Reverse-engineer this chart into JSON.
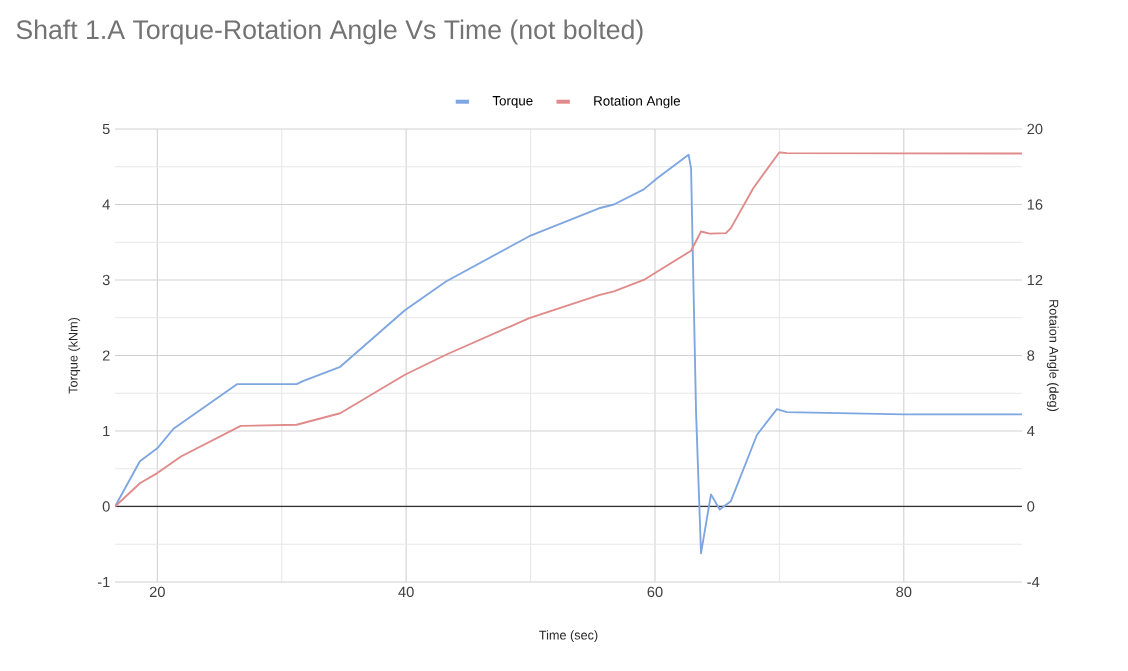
{
  "chart_data": {
    "type": "line",
    "title": "Shaft 1.A Torque-Rotation Angle Vs Time (not bolted)",
    "xlabel": "Time (sec)",
    "ylabel": "Torque (kNm)",
    "y2label": "Rotaion Angle (deg)",
    "xlim": [
      16.6,
      89.5
    ],
    "xticks": [
      20,
      40,
      60,
      80
    ],
    "ylim": [
      -1,
      5
    ],
    "yticks": [
      -1,
      0,
      1,
      2,
      3,
      4,
      5
    ],
    "y2lim": [
      -4,
      20
    ],
    "y2ticks": [
      -4,
      0,
      4,
      8,
      12,
      16,
      20
    ],
    "grid": true,
    "legend": "top",
    "marker": "none",
    "line_style": "solid",
    "ref_lines": [
      {
        "axis": "y",
        "value": 0,
        "color": "#333333"
      }
    ],
    "series": [
      {
        "name": "Torque",
        "color": "#7ea6e0",
        "x": [
          16.6,
          18.6,
          20,
          21.3,
          26.4,
          31.2,
          31.7,
          34.7,
          39.9,
          43.2,
          49.9,
          55.5,
          56.7,
          59.1,
          60.2,
          62.7,
          62.9,
          63.3,
          63.7,
          64.5,
          65.2,
          66.1,
          68.2,
          69.8,
          70.6,
          80,
          89.5
        ],
        "values": [
          0,
          0.6,
          0.77,
          1.03,
          1.62,
          1.62,
          1.66,
          1.85,
          2.6,
          2.98,
          3.58,
          3.95,
          4.0,
          4.2,
          4.35,
          4.66,
          4.48,
          1.26,
          -0.62,
          0.16,
          -0.04,
          0.07,
          0.95,
          1.29,
          1.25,
          1.22,
          1.22
        ]
      },
      {
        "name": "Rotation Angle",
        "color": "#e08a8a",
        "axis": "y2",
        "x": [
          16.6,
          18.6,
          20,
          21.9,
          26.7,
          31.2,
          34.7,
          39.9,
          43.2,
          49.9,
          55.5,
          56.7,
          59.1,
          60.2,
          62.9,
          63.7,
          64.4,
          65.7,
          66.1,
          67.9,
          70.0,
          70.6,
          89.5
        ],
        "values": [
          0,
          1.23,
          1.77,
          2.65,
          4.27,
          4.33,
          4.94,
          6.98,
          8.04,
          9.98,
          11.2,
          11.4,
          12.0,
          12.45,
          13.55,
          14.57,
          14.46,
          14.48,
          14.75,
          16.86,
          18.77,
          18.72,
          18.7
        ]
      }
    ]
  }
}
